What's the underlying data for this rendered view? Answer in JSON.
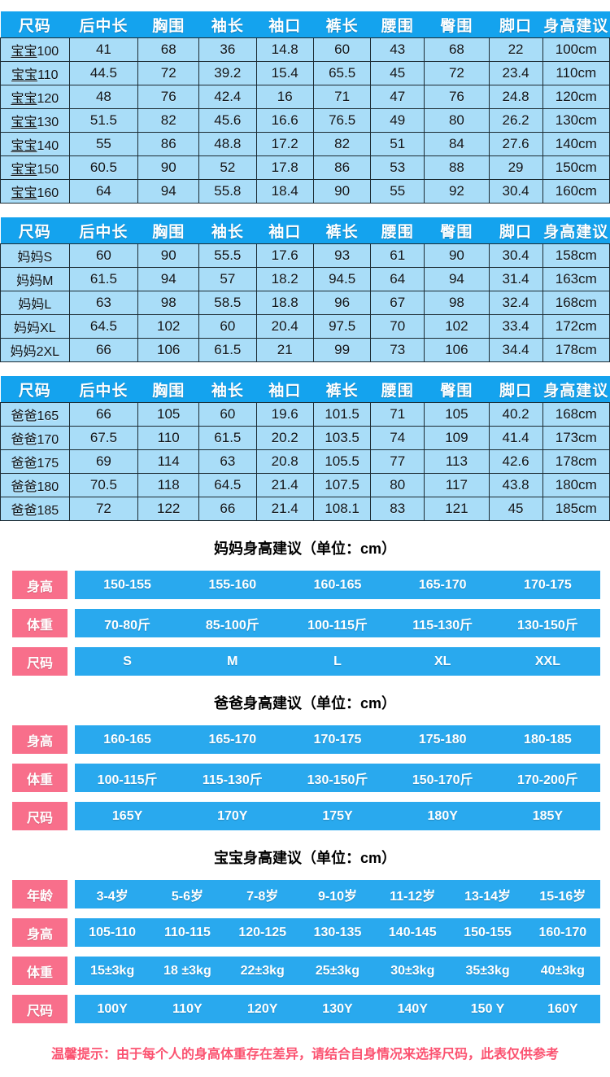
{
  "colors": {
    "header_blue": "#14a3ee",
    "cell_blue": "#a9ddf8",
    "bar_blue": "#29a9ee",
    "label_pink": "#f86f8b",
    "note_red": "#fb5270",
    "cell_border": "#1c2b33"
  },
  "table_headers": [
    "尺码",
    "后中长",
    "胸围",
    "袖长",
    "袖口",
    "裤长",
    "腰围",
    "臀围",
    "脚口",
    "身高建议"
  ],
  "size_tables": [
    {
      "id": "baby",
      "underline_label_prefix": 2,
      "rows": [
        [
          "宝宝100",
          "41",
          "68",
          "36",
          "14.8",
          "60",
          "43",
          "68",
          "22",
          "100cm"
        ],
        [
          "宝宝110",
          "44.5",
          "72",
          "39.2",
          "15.4",
          "65.5",
          "45",
          "72",
          "23.4",
          "110cm"
        ],
        [
          "宝宝120",
          "48",
          "76",
          "42.4",
          "16",
          "71",
          "47",
          "76",
          "24.8",
          "120cm"
        ],
        [
          "宝宝130",
          "51.5",
          "82",
          "45.6",
          "16.6",
          "76.5",
          "49",
          "80",
          "26.2",
          "130cm"
        ],
        [
          "宝宝140",
          "55",
          "86",
          "48.8",
          "17.2",
          "82",
          "51",
          "84",
          "27.6",
          "140cm"
        ],
        [
          "宝宝150",
          "60.5",
          "90",
          "52",
          "17.8",
          "86",
          "53",
          "88",
          "29",
          "150cm"
        ],
        [
          "宝宝160",
          "64",
          "94",
          "55.8",
          "18.4",
          "90",
          "55",
          "92",
          "30.4",
          "160cm"
        ]
      ]
    },
    {
      "id": "mom",
      "underline_label_prefix": 0,
      "rows": [
        [
          "妈妈S",
          "60",
          "90",
          "55.5",
          "17.6",
          "93",
          "61",
          "90",
          "30.4",
          "158cm"
        ],
        [
          "妈妈M",
          "61.5",
          "94",
          "57",
          "18.2",
          "94.5",
          "64",
          "94",
          "31.4",
          "163cm"
        ],
        [
          "妈妈L",
          "63",
          "98",
          "58.5",
          "18.8",
          "96",
          "67",
          "98",
          "32.4",
          "168cm"
        ],
        [
          "妈妈XL",
          "64.5",
          "102",
          "60",
          "20.4",
          "97.5",
          "70",
          "102",
          "33.4",
          "172cm"
        ],
        [
          "妈妈2XL",
          "66",
          "106",
          "61.5",
          "21",
          "99",
          "73",
          "106",
          "34.4",
          "178cm"
        ]
      ]
    },
    {
      "id": "dad",
      "underline_label_prefix": 0,
      "rows": [
        [
          "爸爸165",
          "66",
          "105",
          "60",
          "19.6",
          "101.5",
          "71",
          "105",
          "40.2",
          "168cm"
        ],
        [
          "爸爸170",
          "67.5",
          "110",
          "61.5",
          "20.2",
          "103.5",
          "74",
          "109",
          "41.4",
          "173cm"
        ],
        [
          "爸爸175",
          "69",
          "114",
          "63",
          "20.8",
          "105.5",
          "77",
          "113",
          "42.6",
          "178cm"
        ],
        [
          "爸爸180",
          "70.5",
          "118",
          "64.5",
          "21.4",
          "107.5",
          "80",
          "117",
          "43.8",
          "180cm"
        ],
        [
          "爸爸185",
          "72",
          "122",
          "66",
          "21.4",
          "108.1",
          "83",
          "121",
          "45",
          "185cm"
        ]
      ]
    }
  ],
  "sections": [
    {
      "id": "mom-height",
      "title": "妈妈身高建议（单位：cm）",
      "rows": [
        {
          "label": "身高",
          "cells": [
            "150-155",
            "155-160",
            "160-165",
            "165-170",
            "170-175"
          ]
        },
        {
          "label": "体重",
          "cells": [
            "70-80斤",
            "85-100斤",
            "100-115斤",
            "115-130斤",
            "130-150斤"
          ]
        },
        {
          "label": "尺码",
          "cells": [
            "S",
            "M",
            "L",
            "XL",
            "XXL"
          ]
        }
      ]
    },
    {
      "id": "dad-height",
      "title": "爸爸身高建议（单位：cm）",
      "rows": [
        {
          "label": "身高",
          "cells": [
            "160-165",
            "165-170",
            "170-175",
            "175-180",
            "180-185"
          ]
        },
        {
          "label": "体重",
          "cells": [
            "100-115斤",
            "115-130斤",
            "130-150斤",
            "150-170斤",
            "170-200斤"
          ]
        },
        {
          "label": "尺码",
          "cells": [
            "165Y",
            "170Y",
            "175Y",
            "180Y",
            "185Y"
          ]
        }
      ]
    },
    {
      "id": "baby-height",
      "title": "宝宝身高建议（单位：cm）",
      "rows": [
        {
          "label": "年龄",
          "cells": [
            "3-4岁",
            "5-6岁",
            "7-8岁",
            "9-10岁",
            "11-12岁",
            "13-14岁",
            "15-16岁"
          ]
        },
        {
          "label": "身高",
          "cells": [
            "105-110",
            "110-115",
            "120-125",
            "130-135",
            "140-145",
            "150-155",
            "160-170"
          ]
        },
        {
          "label": "体重",
          "cells": [
            "15±3kg",
            "18 ±3kg",
            "22±3kg",
            "25±3kg",
            "30±3kg",
            "35±3kg",
            "40±3kg"
          ]
        },
        {
          "label": "尺码",
          "cells": [
            "100Y",
            "110Y",
            "120Y",
            "130Y",
            "140Y",
            "150 Y",
            "160Y"
          ]
        }
      ]
    }
  ],
  "note": "温馨提示：由于每个人的身高体重存在差异，请结合自身情况来选择尺码，此表仅供参考"
}
